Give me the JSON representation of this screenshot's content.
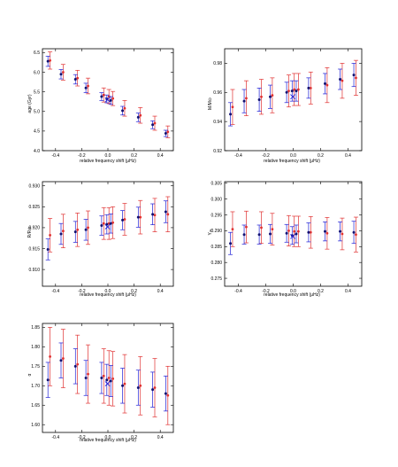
{
  "colors": {
    "blue": "#1f1fd6",
    "red": "#e03030",
    "navy": "#101070",
    "axis": "#000000"
  },
  "chart_data": [
    {
      "id": "age",
      "type": "scatter",
      "xlabel": "relative frequency shift (μHz)",
      "ylabel": "age (Gyr)",
      "xlim": [
        -0.5,
        0.5
      ],
      "ylim": [
        4.0,
        6.6
      ],
      "xticks": [
        -0.4,
        -0.2,
        0.0,
        0.2,
        0.4
      ],
      "yticks": [
        4.0,
        4.5,
        5.0,
        5.5,
        6.0,
        6.5
      ],
      "xtick_labels": [
        "-0.4",
        "-0.2",
        "0.0",
        "0.2",
        "0.4"
      ],
      "ytick_labels": [
        "4.0",
        "4.5",
        "5.0",
        "5.5",
        "6.0",
        "6.5"
      ],
      "series": [
        {
          "role": "blue",
          "x": [
            -0.45,
            -0.35,
            -0.24,
            -0.16,
            -0.04,
            0.0,
            0.03,
            0.12,
            0.24,
            0.35,
            0.45
          ],
          "y": [
            6.28,
            5.95,
            5.82,
            5.6,
            5.38,
            5.32,
            5.28,
            5.02,
            4.85,
            4.66,
            4.44
          ],
          "err": [
            0.13,
            0.12,
            0.12,
            0.12,
            0.1,
            0.1,
            0.1,
            0.11,
            0.11,
            0.1,
            0.08
          ]
        },
        {
          "role": "red",
          "x": [
            -0.45,
            -0.35,
            -0.24,
            -0.16,
            -0.04,
            0.0,
            0.03,
            0.12,
            0.24,
            0.35,
            0.45
          ],
          "y": [
            6.3,
            6.0,
            5.85,
            5.65,
            5.42,
            5.38,
            5.33,
            5.08,
            4.9,
            4.7,
            4.48
          ],
          "err": [
            0.22,
            0.2,
            0.2,
            0.2,
            0.18,
            0.18,
            0.18,
            0.2,
            0.2,
            0.18,
            0.15
          ]
        }
      ],
      "markers": [
        {
          "x": -0.003,
          "y": 5.3,
          "symbol": "x"
        }
      ]
    },
    {
      "id": "mass",
      "type": "scatter",
      "xlabel": "relative frequency shift (μHz)",
      "ylabel": "M/M⊙",
      "xlim": [
        -0.5,
        0.5
      ],
      "ylim": [
        0.92,
        0.99
      ],
      "xticks": [
        -0.4,
        -0.2,
        0.0,
        0.2,
        0.4
      ],
      "yticks": [
        0.92,
        0.94,
        0.96,
        0.98
      ],
      "xtick_labels": [
        "-0.4",
        "-0.2",
        "0.0",
        "0.2",
        "0.4"
      ],
      "ytick_labels": [
        "0.92",
        "0.94",
        "0.96",
        "0.98"
      ],
      "series": [
        {
          "role": "blue",
          "x": [
            -0.45,
            -0.35,
            -0.24,
            -0.16,
            -0.04,
            0.0,
            0.03,
            0.12,
            0.24,
            0.35,
            0.45
          ],
          "y": [
            0.945,
            0.954,
            0.955,
            0.957,
            0.96,
            0.961,
            0.961,
            0.963,
            0.966,
            0.969,
            0.972
          ],
          "err": [
            0.008,
            0.008,
            0.008,
            0.008,
            0.007,
            0.007,
            0.007,
            0.007,
            0.007,
            0.007,
            0.008
          ]
        },
        {
          "role": "red",
          "x": [
            -0.45,
            -0.35,
            -0.24,
            -0.16,
            -0.04,
            0.0,
            0.03,
            0.12,
            0.24,
            0.35,
            0.45
          ],
          "y": [
            0.95,
            0.956,
            0.957,
            0.958,
            0.961,
            0.962,
            0.962,
            0.963,
            0.965,
            0.968,
            0.97
          ],
          "err": [
            0.012,
            0.012,
            0.012,
            0.012,
            0.011,
            0.011,
            0.011,
            0.011,
            0.012,
            0.012,
            0.012
          ]
        }
      ],
      "markers": [
        {
          "x": -0.003,
          "y": 0.957,
          "symbol": "x"
        }
      ]
    },
    {
      "id": "radius",
      "type": "scatter",
      "xlabel": "relative frequency shift (μHz)",
      "ylabel": "R/R⊙",
      "xlim": [
        -0.5,
        0.5
      ],
      "ylim": [
        0.906,
        0.931
      ],
      "xticks": [
        -0.4,
        -0.2,
        0.0,
        0.2,
        0.4
      ],
      "yticks": [
        0.91,
        0.915,
        0.92,
        0.925,
        0.93
      ],
      "xtick_labels": [
        "-0.4",
        "-0.2",
        "0.0",
        "0.2",
        "0.4"
      ],
      "ytick_labels": [
        "0.910",
        "0.915",
        "0.920",
        "0.925",
        "0.930"
      ],
      "series": [
        {
          "role": "blue",
          "x": [
            -0.45,
            -0.35,
            -0.24,
            -0.16,
            -0.04,
            0.0,
            0.03,
            0.12,
            0.24,
            0.35,
            0.45
          ],
          "y": [
            0.9148,
            0.9185,
            0.919,
            0.9195,
            0.9205,
            0.9208,
            0.921,
            0.9218,
            0.9225,
            0.9232,
            0.9238
          ],
          "err": [
            0.0025,
            0.0025,
            0.0025,
            0.0025,
            0.0023,
            0.0023,
            0.0023,
            0.0023,
            0.0024,
            0.0025,
            0.0026
          ]
        },
        {
          "role": "red",
          "x": [
            -0.45,
            -0.35,
            -0.24,
            -0.16,
            -0.04,
            0.0,
            0.03,
            0.12,
            0.24,
            0.35,
            0.45
          ],
          "y": [
            0.9182,
            0.9192,
            0.9195,
            0.92,
            0.921,
            0.921,
            0.9212,
            0.922,
            0.9225,
            0.923,
            0.9232
          ],
          "err": [
            0.004,
            0.004,
            0.004,
            0.004,
            0.0038,
            0.0038,
            0.0038,
            0.0038,
            0.004,
            0.004,
            0.0042
          ]
        }
      ],
      "markers": [
        {
          "x": -0.003,
          "y": 0.9202,
          "symbol": "x"
        }
      ]
    },
    {
      "id": "yinit",
      "type": "scatter",
      "xlabel": "relative frequency shift (μHz)",
      "ylabel": "Yᵢₙᵢ",
      "xlim": [
        -0.5,
        0.5
      ],
      "ylim": [
        0.2725,
        0.3055
      ],
      "xticks": [
        -0.4,
        -0.2,
        0.0,
        0.2,
        0.4
      ],
      "yticks": [
        0.275,
        0.28,
        0.285,
        0.29,
        0.295,
        0.3,
        0.305
      ],
      "xtick_labels": [
        "-0.4",
        "-0.2",
        "0.0",
        "0.2",
        "0.4"
      ],
      "ytick_labels": [
        "0.275",
        "0.280",
        "0.285",
        "0.290",
        "0.295",
        "0.300",
        "0.305"
      ],
      "series": [
        {
          "role": "blue",
          "x": [
            -0.45,
            -0.35,
            -0.24,
            -0.16,
            -0.04,
            0.0,
            0.03,
            0.12,
            0.24,
            0.35,
            0.45
          ],
          "y": [
            0.286,
            0.2888,
            0.2888,
            0.289,
            0.2892,
            0.2885,
            0.289,
            0.2895,
            0.2898,
            0.2898,
            0.2895
          ],
          "err": [
            0.0035,
            0.003,
            0.003,
            0.003,
            0.0028,
            0.0028,
            0.0028,
            0.003,
            0.003,
            0.003,
            0.0035
          ]
        },
        {
          "role": "red",
          "x": [
            -0.45,
            -0.35,
            -0.24,
            -0.16,
            -0.04,
            0.0,
            0.03,
            0.12,
            0.24,
            0.35,
            0.45
          ],
          "y": [
            0.2905,
            0.2912,
            0.291,
            0.2905,
            0.29,
            0.2898,
            0.2898,
            0.2895,
            0.2892,
            0.289,
            0.2888
          ],
          "err": [
            0.0055,
            0.005,
            0.005,
            0.005,
            0.0048,
            0.0048,
            0.0048,
            0.005,
            0.005,
            0.005,
            0.0055
          ]
        }
      ],
      "markers": [
        {
          "x": -0.003,
          "y": 0.2882,
          "symbol": "x"
        }
      ]
    },
    {
      "id": "alpha",
      "type": "scatter",
      "xlabel": "relative frequency shift (μHz)",
      "ylabel": "α",
      "xlim": [
        -0.5,
        0.5
      ],
      "ylim": [
        1.58,
        1.86
      ],
      "xticks": [
        -0.4,
        -0.2,
        0.0,
        0.2,
        0.4
      ],
      "yticks": [
        1.6,
        1.65,
        1.7,
        1.75,
        1.8,
        1.85
      ],
      "xtick_labels": [
        "-0.4",
        "-0.2",
        "0.0",
        "0.2",
        "0.4"
      ],
      "ytick_labels": [
        "1.60",
        "1.65",
        "1.70",
        "1.75",
        "1.80",
        "1.85"
      ],
      "series": [
        {
          "role": "blue",
          "x": [
            -0.45,
            -0.35,
            -0.24,
            -0.16,
            -0.04,
            0.0,
            0.03,
            0.12,
            0.24,
            0.35,
            0.45
          ],
          "y": [
            1.715,
            1.765,
            1.75,
            1.72,
            1.72,
            1.715,
            1.712,
            1.7,
            1.695,
            1.69,
            1.68
          ],
          "err": [
            0.045,
            0.045,
            0.045,
            0.045,
            0.04,
            0.04,
            0.04,
            0.045,
            0.045,
            0.045,
            0.045
          ]
        },
        {
          "role": "red",
          "x": [
            -0.45,
            -0.35,
            -0.24,
            -0.16,
            -0.04,
            0.0,
            0.03,
            0.12,
            0.24,
            0.35,
            0.45
          ],
          "y": [
            1.775,
            1.77,
            1.755,
            1.73,
            1.725,
            1.72,
            1.718,
            1.705,
            1.7,
            1.695,
            1.675
          ],
          "err": [
            0.075,
            0.075,
            0.075,
            0.075,
            0.07,
            0.07,
            0.07,
            0.075,
            0.075,
            0.075,
            0.075
          ]
        }
      ],
      "markers": [
        {
          "x": -0.003,
          "y": 1.705,
          "symbol": "x"
        }
      ]
    }
  ]
}
